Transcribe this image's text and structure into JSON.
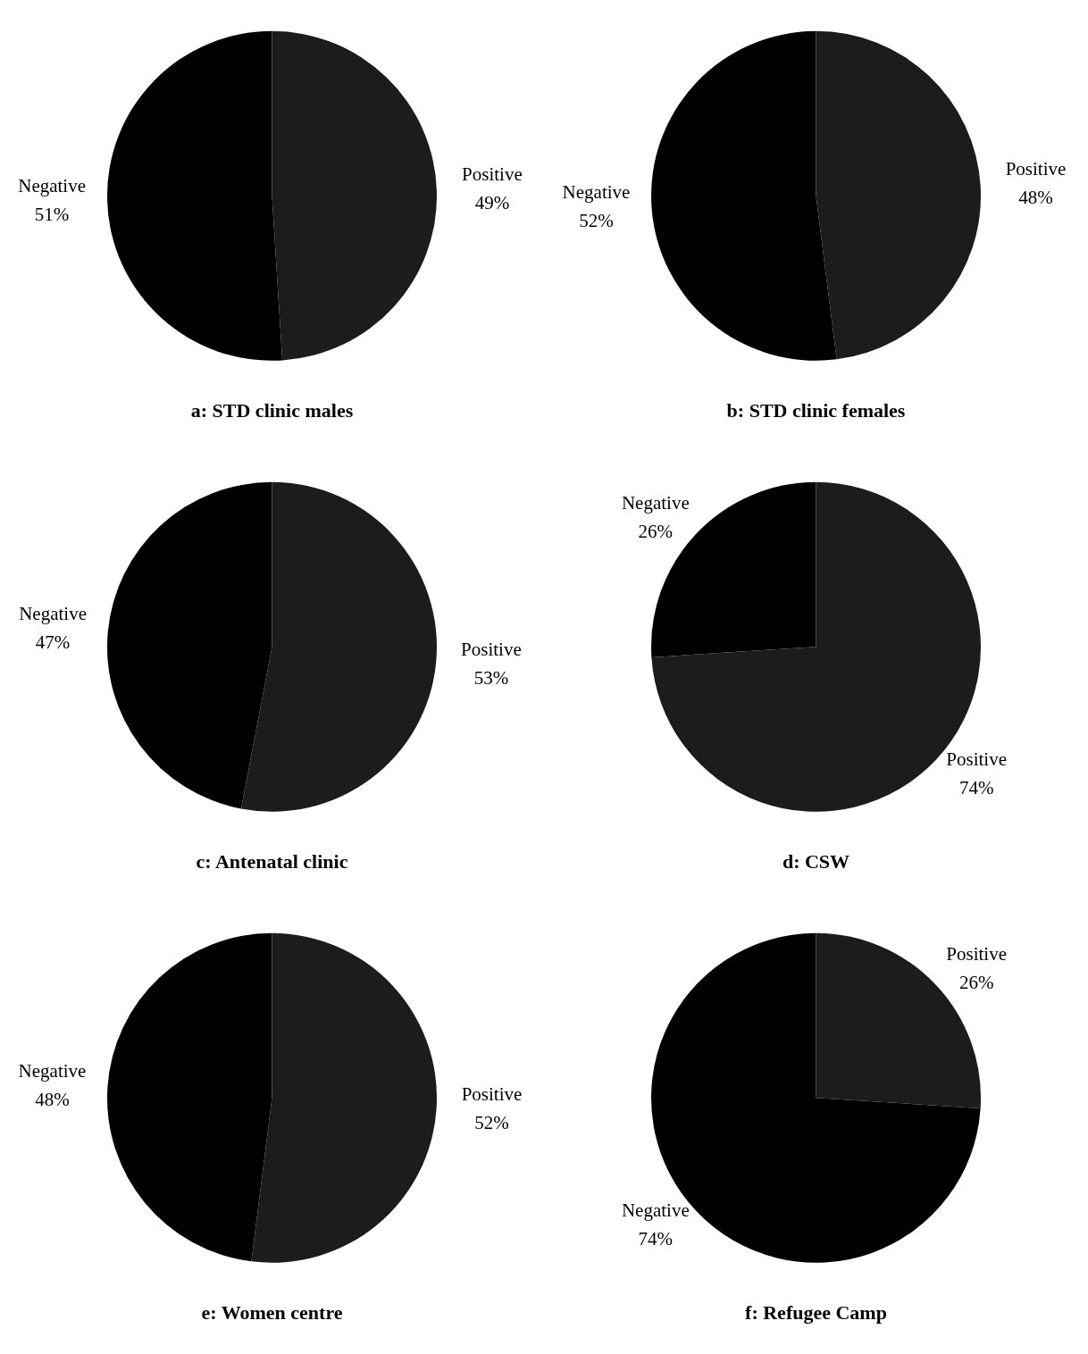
{
  "chart_data": [
    {
      "type": "pie",
      "title": "a: STD clinic males",
      "categories": [
        "Negative",
        "Positive"
      ],
      "values": [
        51,
        49
      ],
      "value_labels": [
        "51%",
        "49%"
      ],
      "colors": [
        "#000000",
        "#1c1c1c"
      ]
    },
    {
      "type": "pie",
      "title": "b: STD clinic females",
      "categories": [
        "Negative",
        "Positive"
      ],
      "values": [
        52,
        48
      ],
      "value_labels": [
        "52%",
        "48%"
      ],
      "colors": [
        "#000000",
        "#1c1c1c"
      ]
    },
    {
      "type": "pie",
      "title": "c: Antenatal clinic",
      "categories": [
        "Negative",
        "Positive"
      ],
      "values": [
        47,
        53
      ],
      "value_labels": [
        "47%",
        "53%"
      ],
      "colors": [
        "#000000",
        "#1c1c1c"
      ]
    },
    {
      "type": "pie",
      "title": "d: CSW",
      "categories": [
        "Negative",
        "Positive"
      ],
      "values": [
        26,
        74
      ],
      "value_labels": [
        "26%",
        "74%"
      ],
      "colors": [
        "#000000",
        "#1c1c1c"
      ]
    },
    {
      "type": "pie",
      "title": "e: Women centre",
      "categories": [
        "Negative",
        "Positive"
      ],
      "values": [
        48,
        52
      ],
      "value_labels": [
        "48%",
        "52%"
      ],
      "colors": [
        "#000000",
        "#1c1c1c"
      ]
    },
    {
      "type": "pie",
      "title": "f: Refugee Camp",
      "categories": [
        "Negative",
        "Positive"
      ],
      "values": [
        74,
        26
      ],
      "value_labels": [
        "74%",
        "26%"
      ],
      "colors": [
        "#000000",
        "#1c1c1c"
      ]
    }
  ]
}
